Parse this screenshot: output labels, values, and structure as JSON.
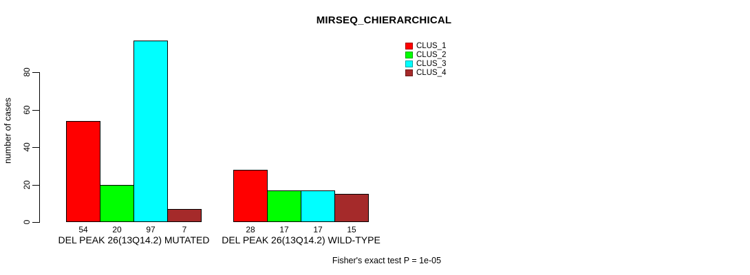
{
  "figure": {
    "title": "MIRSEQ_CHIERARCHICAL",
    "footnote": "Fisher's exact test P = 1e-05"
  },
  "chart_data": {
    "type": "bar",
    "title": "MIRSEQ_CHIERARCHICAL",
    "xlabel": "",
    "ylabel": "number of cases",
    "ylim": [
      0,
      97
    ],
    "yticks": [
      0,
      20,
      40,
      60,
      80
    ],
    "grid": false,
    "legend_position": "top-right-of-plot",
    "categories": [
      "DEL PEAK 26(13Q14.2) MUTATED",
      "DEL PEAK 26(13Q14.2) WILD-TYPE"
    ],
    "series": [
      {
        "name": "CLUS_1",
        "color": "#ff0000",
        "values": [
          54,
          28
        ]
      },
      {
        "name": "CLUS_2",
        "color": "#00ff00",
        "values": [
          20,
          17
        ]
      },
      {
        "name": "CLUS_3",
        "color": "#00ffff",
        "values": [
          97,
          17
        ]
      },
      {
        "name": "CLUS_4",
        "color": "#a52a2a",
        "values": [
          7,
          15
        ]
      }
    ],
    "bar_value_labels_shown": true,
    "annotation": "Fisher's exact test P = 1e-05"
  }
}
